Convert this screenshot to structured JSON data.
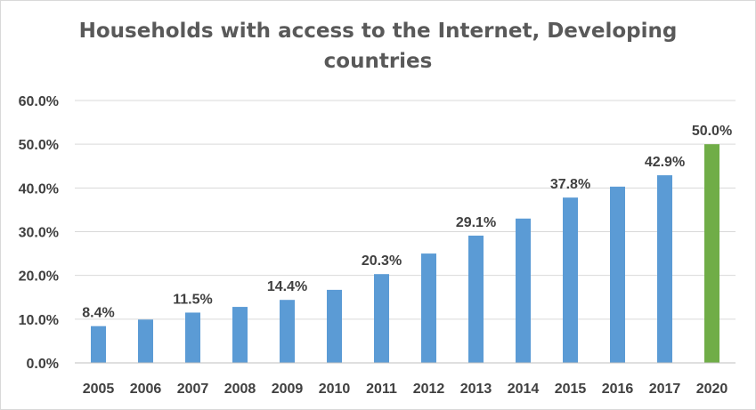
{
  "chart_data": {
    "type": "bar",
    "title_lines": [
      "Households with access to the Internet, Developing",
      "countries"
    ],
    "categories": [
      "2005",
      "2006",
      "2007",
      "2008",
      "2009",
      "2010",
      "2011",
      "2012",
      "2013",
      "2014",
      "2015",
      "2016",
      "2017",
      "2020"
    ],
    "values": [
      8.4,
      9.9,
      11.5,
      12.8,
      14.4,
      16.7,
      20.3,
      25.0,
      29.1,
      33.0,
      37.8,
      40.3,
      42.9,
      50.0
    ],
    "labels": [
      "8.4%",
      "",
      "11.5%",
      "",
      "14.4%",
      "",
      "20.3%",
      "",
      "29.1%",
      "",
      "37.8%",
      "",
      "42.9%",
      "50.0%"
    ],
    "highlight_index": 13,
    "ylim": [
      0,
      60
    ],
    "yticks": [
      0,
      10,
      20,
      30,
      40,
      50,
      60
    ],
    "ytick_labels": [
      "0.0%",
      "10.0%",
      "20.0%",
      "30.0%",
      "40.0%",
      "50.0%",
      "60.0%"
    ],
    "grid": true,
    "xlabel": "",
    "ylabel": "",
    "colors": {
      "bar": "#5b9bd5",
      "highlight": "#70ad47",
      "grid": "#d9d9d9",
      "axis": "#bfbfbf"
    }
  }
}
